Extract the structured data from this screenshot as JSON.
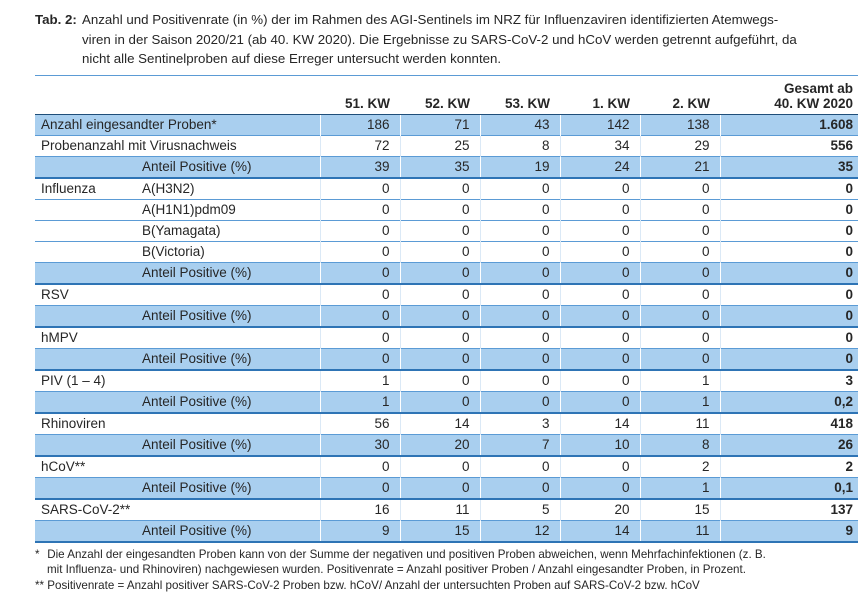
{
  "colors": {
    "highlight_row": "#a9cfef",
    "thin_rule": "#5b9bd5",
    "thick_rule": "#2e74b5",
    "header_rule": "#1f4e79",
    "text": "#262626"
  },
  "caption": {
    "label": "Tab. 2:",
    "lines": [
      "Anzahl und Positivenrate (in %) der im Rahmen des AGI-Sentinels im NRZ für Influenzaviren identifizierten Atemwegs-",
      "viren in der Saison 2020/21 (ab 40. KW 2020). Die Ergebnisse zu SARS-CoV-2 und hCoV werden getrennt aufgeführt, da",
      "nicht alle Sentinelproben auf diese Erreger untersucht werden konnten."
    ]
  },
  "table": {
    "columns": [
      "51. KW",
      "52. KW",
      "53. KW",
      "1. KW",
      "2. KW"
    ],
    "total_column": {
      "line1": "Gesamt ab",
      "line2": "40. KW 2020"
    },
    "rows": [
      {
        "label": "Anzahl eingesandter Proben*",
        "sublabel": "",
        "values": [
          "186",
          "71",
          "43",
          "142",
          "138",
          "1.608"
        ],
        "highlight": true,
        "thick_bottom": false
      },
      {
        "label": "Probenanzahl mit Virusnachweis",
        "sublabel": "",
        "values": [
          "72",
          "25",
          "8",
          "34",
          "29",
          "556"
        ],
        "highlight": false,
        "thick_bottom": false
      },
      {
        "label": "",
        "sublabel": "Anteil Positive (%)",
        "values": [
          "39",
          "35",
          "19",
          "24",
          "21",
          "35"
        ],
        "highlight": true,
        "thick_bottom": true
      },
      {
        "label": "Influenza",
        "sublabel": "A(H3N2)",
        "values": [
          "0",
          "0",
          "0",
          "0",
          "0",
          "0"
        ],
        "highlight": false,
        "thick_bottom": false
      },
      {
        "label": "",
        "sublabel": "A(H1N1)pdm09",
        "values": [
          "0",
          "0",
          "0",
          "0",
          "0",
          "0"
        ],
        "highlight": false,
        "thick_bottom": false
      },
      {
        "label": "",
        "sublabel": "B(Yamagata)",
        "values": [
          "0",
          "0",
          "0",
          "0",
          "0",
          "0"
        ],
        "highlight": false,
        "thick_bottom": false
      },
      {
        "label": "",
        "sublabel": "B(Victoria)",
        "values": [
          "0",
          "0",
          "0",
          "0",
          "0",
          "0"
        ],
        "highlight": false,
        "thick_bottom": false
      },
      {
        "label": "",
        "sublabel": "Anteil Positive (%)",
        "values": [
          "0",
          "0",
          "0",
          "0",
          "0",
          "0"
        ],
        "highlight": true,
        "thick_bottom": true
      },
      {
        "label": "RSV",
        "sublabel": "",
        "values": [
          "0",
          "0",
          "0",
          "0",
          "0",
          "0"
        ],
        "highlight": false,
        "thick_bottom": false
      },
      {
        "label": "",
        "sublabel": "Anteil Positive (%)",
        "values": [
          "0",
          "0",
          "0",
          "0",
          "0",
          "0"
        ],
        "highlight": true,
        "thick_bottom": true
      },
      {
        "label": "hMPV",
        "sublabel": "",
        "values": [
          "0",
          "0",
          "0",
          "0",
          "0",
          "0"
        ],
        "highlight": false,
        "thick_bottom": false
      },
      {
        "label": "",
        "sublabel": "Anteil Positive (%)",
        "values": [
          "0",
          "0",
          "0",
          "0",
          "0",
          "0"
        ],
        "highlight": true,
        "thick_bottom": true
      },
      {
        "label": "PIV (1 – 4)",
        "sublabel": "",
        "values": [
          "1",
          "0",
          "0",
          "0",
          "1",
          "3"
        ],
        "highlight": false,
        "thick_bottom": false
      },
      {
        "label": "",
        "sublabel": "Anteil Positive (%)",
        "values": [
          "1",
          "0",
          "0",
          "0",
          "1",
          "0,2"
        ],
        "highlight": true,
        "thick_bottom": true
      },
      {
        "label": "Rhinoviren",
        "sublabel": "",
        "values": [
          "56",
          "14",
          "3",
          "14",
          "11",
          "418"
        ],
        "highlight": false,
        "thick_bottom": false
      },
      {
        "label": "",
        "sublabel": "Anteil Positive (%)",
        "values": [
          "30",
          "20",
          "7",
          "10",
          "8",
          "26"
        ],
        "highlight": true,
        "thick_bottom": true
      },
      {
        "label": "hCoV**",
        "sublabel": "",
        "values": [
          "0",
          "0",
          "0",
          "0",
          "2",
          "2"
        ],
        "highlight": false,
        "thick_bottom": false
      },
      {
        "label": "",
        "sublabel": "Anteil Positive (%)",
        "values": [
          "0",
          "0",
          "0",
          "0",
          "1",
          "0,1"
        ],
        "highlight": true,
        "thick_bottom": true
      },
      {
        "label": "SARS-CoV-2**",
        "sublabel": "",
        "values": [
          "16",
          "11",
          "5",
          "20",
          "15",
          "137"
        ],
        "highlight": false,
        "thick_bottom": false
      },
      {
        "label": "",
        "sublabel": "Anteil Positive (%)",
        "values": [
          "9",
          "15",
          "12",
          "14",
          "11",
          "9"
        ],
        "highlight": true,
        "thick_bottom": true
      }
    ]
  },
  "footnotes": [
    {
      "marker": "*",
      "lines": [
        "Die Anzahl der eingesandten Proben kann von der Summe der negativen und positiven Proben abweichen, wenn Mehrfachinfektionen (z. B.",
        "mit Influenza- und Rhinoviren) nachgewiesen wurden. Positivenrate = Anzahl positiver Proben / Anzahl eingesandter Proben, in Prozent."
      ]
    },
    {
      "marker": "**",
      "lines": [
        "Positivenrate = Anzahl positiver SARS-CoV-2 Proben bzw. hCoV/ Anzahl der untersuchten Proben auf SARS-CoV-2 bzw. hCoV"
      ]
    }
  ]
}
